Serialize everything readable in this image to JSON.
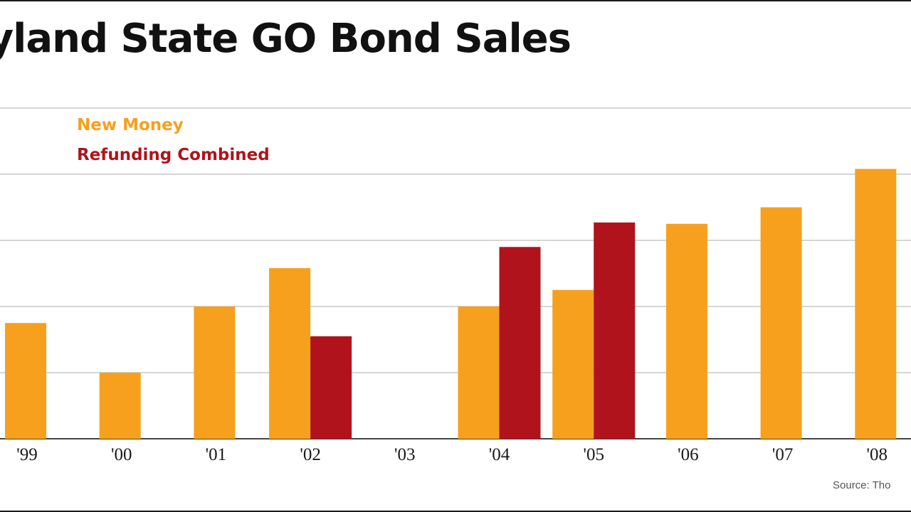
{
  "chart_data": {
    "type": "bar",
    "title": "ryland State GO Bond Sales",
    "categories": [
      "'99",
      "'00",
      "'01",
      "'02",
      "'03",
      "'04",
      "'05",
      "'06",
      "'07",
      "'08"
    ],
    "series": [
      {
        "name": "New Money",
        "color": "#f6a01e",
        "values": [
          1.75,
          1.0,
          2.0,
          2.58,
          null,
          2.0,
          2.25,
          3.25,
          3.5,
          4.08
        ]
      },
      {
        "name": "Refunding Combined",
        "color": "#b0131b",
        "values": [
          null,
          null,
          null,
          1.55,
          null,
          2.9,
          3.27,
          null,
          null,
          null
        ]
      }
    ],
    "ylim": [
      0,
      5
    ],
    "grid": true,
    "legend": "top-left",
    "xlabel": "",
    "ylabel": ""
  },
  "source": "Source: Tho"
}
